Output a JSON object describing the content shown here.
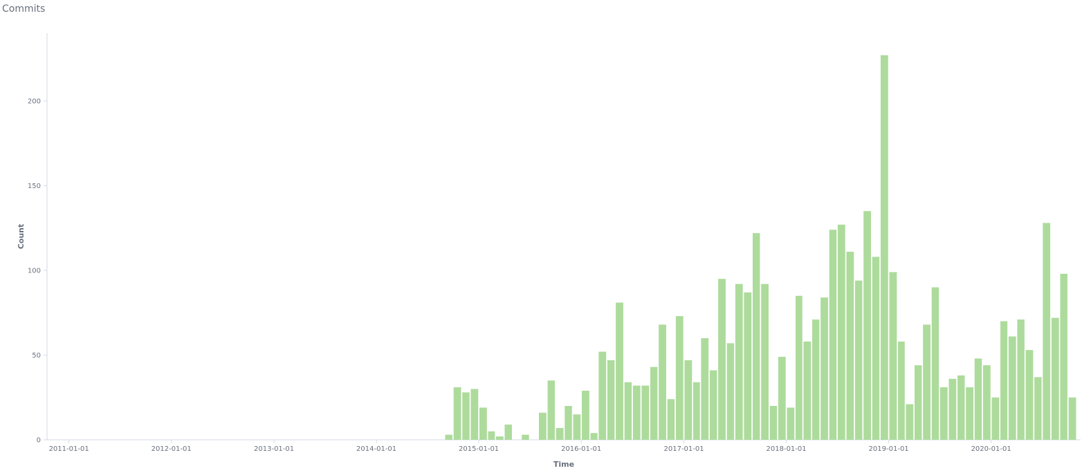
{
  "panel": {
    "title": "Commits"
  },
  "chart_data": {
    "type": "bar",
    "title": "Commits",
    "xlabel": "Time",
    "ylabel": "Count",
    "x_ticks": [
      "2011-01-01",
      "2012-01-01",
      "2013-01-01",
      "2014-01-01",
      "2015-01-01",
      "2016-01-01",
      "2017-01-01",
      "2018-01-01",
      "2019-01-01",
      "2020-01-01"
    ],
    "y_ticks": [
      0,
      50,
      100,
      150,
      200
    ],
    "ylim": [
      0,
      240
    ],
    "xlim": [
      "2010-10-15",
      "2020-11-15"
    ],
    "bar_months": [
      "2014-09",
      "2014-10",
      "2014-11",
      "2014-12",
      "2015-01",
      "2015-02",
      "2015-03",
      "2015-04",
      "2015-05",
      "2015-06",
      "2015-07",
      "2015-08",
      "2015-09",
      "2015-10",
      "2015-11",
      "2015-12",
      "2016-01",
      "2016-02",
      "2016-03",
      "2016-04",
      "2016-05",
      "2016-06",
      "2016-07",
      "2016-08",
      "2016-09",
      "2016-10",
      "2016-11",
      "2016-12",
      "2017-01",
      "2017-02",
      "2017-03",
      "2017-04",
      "2017-05",
      "2017-06",
      "2017-07",
      "2017-08",
      "2017-09",
      "2017-10",
      "2017-11",
      "2017-12",
      "2018-01",
      "2018-02",
      "2018-03",
      "2018-04",
      "2018-05",
      "2018-06",
      "2018-07",
      "2018-08",
      "2018-09",
      "2018-10",
      "2018-11",
      "2018-12",
      "2019-01",
      "2019-02",
      "2019-03",
      "2019-04",
      "2019-05",
      "2019-06",
      "2019-07",
      "2019-08",
      "2019-09",
      "2019-10",
      "2019-11",
      "2019-12",
      "2020-01",
      "2020-02",
      "2020-03",
      "2020-04",
      "2020-05",
      "2020-06",
      "2020-07",
      "2020-08",
      "2020-09",
      "2020-10"
    ],
    "values": [
      3,
      31,
      28,
      30,
      19,
      5,
      2,
      9,
      0,
      3,
      0,
      16,
      35,
      7,
      20,
      15,
      29,
      4,
      52,
      47,
      81,
      34,
      32,
      32,
      43,
      68,
      24,
      73,
      47,
      34,
      60,
      41,
      95,
      57,
      92,
      87,
      122,
      92,
      20,
      49,
      19,
      85,
      58,
      71,
      84,
      124,
      127,
      111,
      94,
      135,
      108,
      227,
      99,
      58,
      21,
      44,
      68,
      90,
      31,
      36,
      38,
      31,
      48,
      44,
      25,
      70,
      61,
      71,
      53,
      37,
      128,
      72,
      98,
      25
    ],
    "bar_color": "#addb9c",
    "grid": false,
    "legend": "none"
  }
}
